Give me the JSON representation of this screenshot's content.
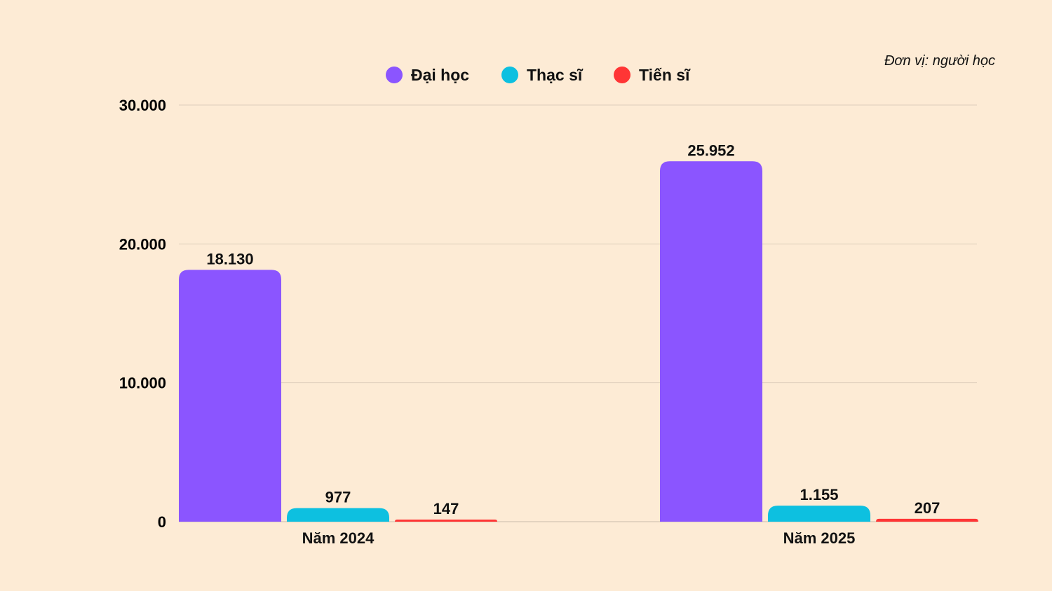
{
  "chart_data": {
    "type": "bar",
    "unit_note": "Đơn vị: người học",
    "categories": [
      "Năm 2024",
      "Năm 2025"
    ],
    "series": [
      {
        "name": "Đại học",
        "color": "#8B55FF",
        "values": [
          18130,
          25952
        ],
        "labels": [
          "18.130",
          "25.952"
        ]
      },
      {
        "name": "Thạc sĩ",
        "color": "#0DC0E0",
        "values": [
          977,
          1155
        ],
        "labels": [
          "977",
          "1.155"
        ]
      },
      {
        "name": "Tiến sĩ",
        "color": "#FF3535",
        "values": [
          147,
          207
        ],
        "labels": [
          "147",
          "207"
        ]
      }
    ],
    "ylim": [
      0,
      30000
    ],
    "yticks": [
      0,
      10000,
      20000,
      30000
    ],
    "ytick_labels": [
      "0",
      "10.000",
      "20.000",
      "30.000"
    ],
    "grid": true,
    "legend": "top-center"
  }
}
